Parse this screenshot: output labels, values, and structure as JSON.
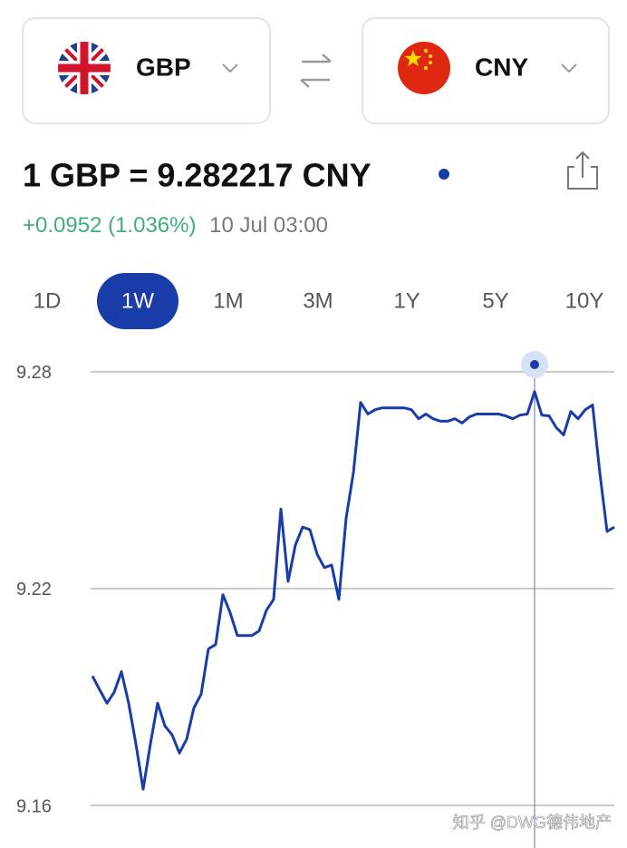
{
  "from_currency": {
    "code": "GBP"
  },
  "to_currency": {
    "code": "CNY"
  },
  "rate": "1 GBP = 9.282217 CNY",
  "change": "+0.0952 (1.036%)",
  "timestamp": "10 Jul 03:00",
  "ranges": [
    "1D",
    "1W",
    "1M",
    "3M",
    "1Y",
    "5Y",
    "10Y"
  ],
  "selected_range": 1,
  "chart_data": {
    "type": "line",
    "color": "#1a3ca8",
    "grid": true,
    "ylim": [
      9.157,
      9.29
    ],
    "yticks": [
      9.28,
      9.22,
      9.16
    ],
    "values": [
      9.1958,
      9.192,
      9.1883,
      9.1913,
      9.197,
      9.1883,
      9.177,
      9.1645,
      9.177,
      9.1883,
      9.182,
      9.1795,
      9.1745,
      9.1783,
      9.187,
      9.1908,
      9.2033,
      9.2045,
      9.2183,
      9.2133,
      9.207,
      9.207,
      9.207,
      9.2083,
      9.214,
      9.217,
      9.242,
      9.222,
      9.232,
      9.237,
      9.2363,
      9.2295,
      9.2258,
      9.2265,
      9.217,
      9.2395,
      9.252,
      9.2715,
      9.2683,
      9.2695,
      9.27,
      9.27,
      9.27,
      9.27,
      9.2695,
      9.267,
      9.2683,
      9.267,
      9.2663,
      9.2663,
      9.267,
      9.2658,
      9.2675,
      9.2683,
      9.2683,
      9.2683,
      9.2683,
      9.2678,
      9.267,
      9.268,
      9.2683,
      9.2745,
      9.268,
      9.2678,
      9.2645,
      9.2625,
      9.269,
      9.267,
      9.2695,
      9.2708,
      9.252,
      9.2358,
      9.237
    ]
  },
  "watermark": "知乎 @DWG德伟地产"
}
